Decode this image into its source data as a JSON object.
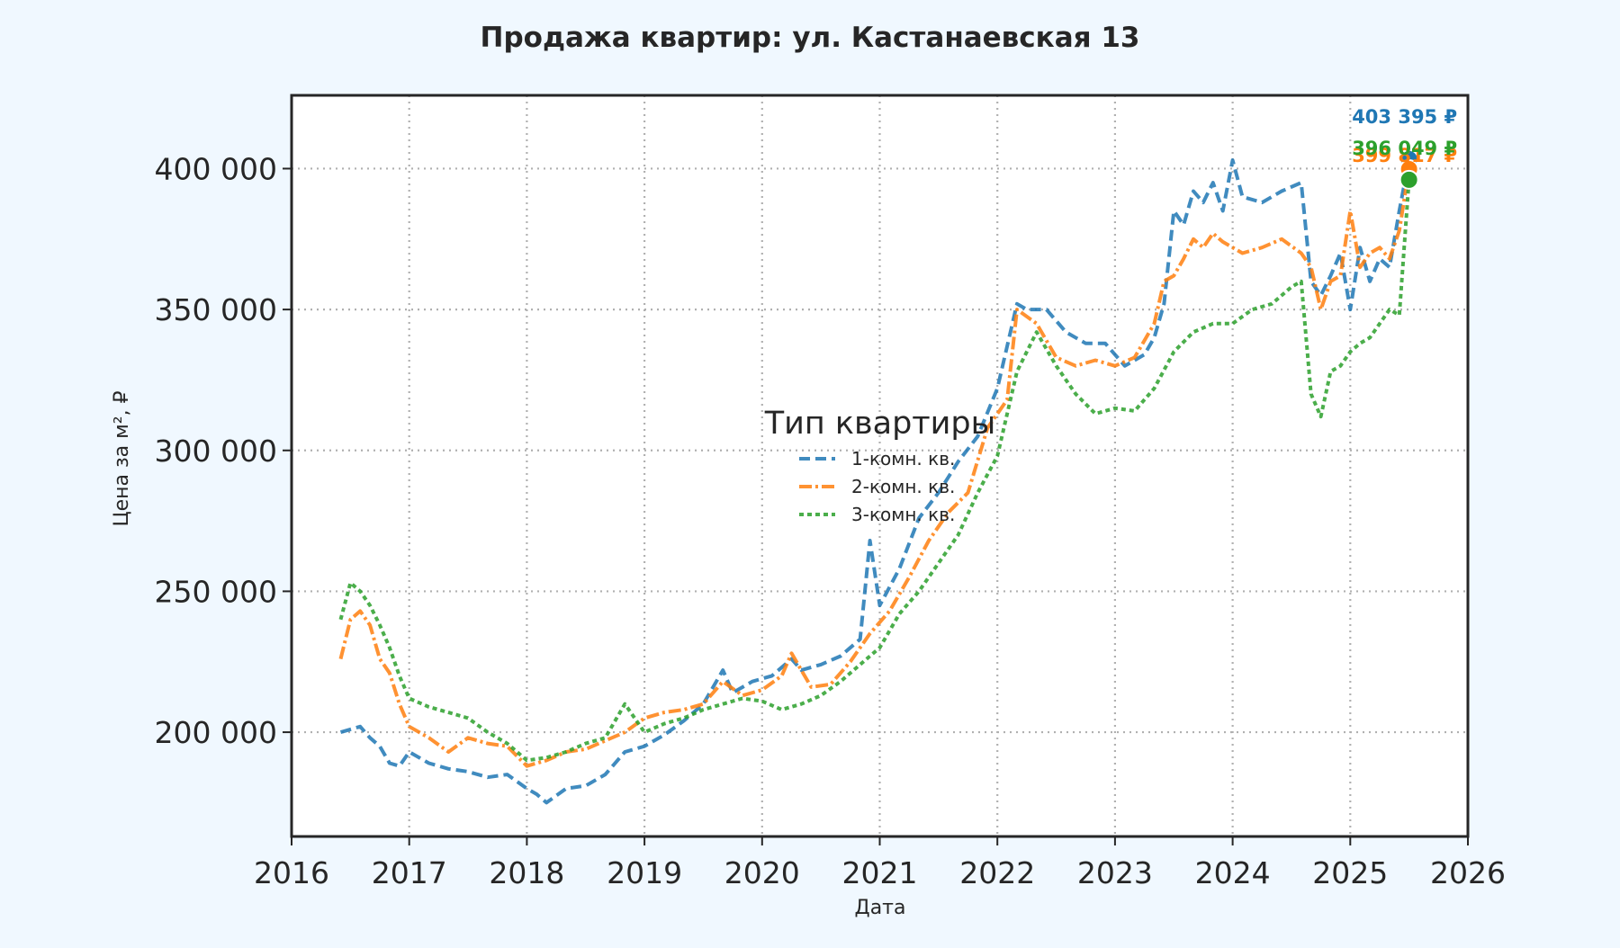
{
  "chart_data": {
    "type": "line",
    "title": "Продажа квартир: ул. Кастанаевская 13",
    "xlabel": "Дата",
    "ylabel": "Цена за м², ₽",
    "xlim": [
      "2016-01-01",
      "2026-01-01"
    ],
    "ylim": [
      163000,
      426000
    ],
    "x_ticks": [
      "2016",
      "2017",
      "2018",
      "2019",
      "2020",
      "2021",
      "2022",
      "2023",
      "2024",
      "2025",
      "2026"
    ],
    "y_ticks": [
      200000,
      250000,
      300000,
      350000,
      400000
    ],
    "y_tick_labels": [
      "200 000",
      "250 000",
      "300 000",
      "350 000",
      "400 000"
    ],
    "grid": true,
    "legend": {
      "title": "Тип квартиры",
      "placement": "center"
    },
    "series": [
      {
        "name": "1-комн. кв.",
        "color": "#1f77b4",
        "line_style": "dashed",
        "x": [
          "2016-06",
          "2016-07",
          "2016-08",
          "2016-09",
          "2016-10",
          "2016-11",
          "2016-12",
          "2017-01",
          "2017-03",
          "2017-05",
          "2017-07",
          "2017-09",
          "2017-11",
          "2018-01",
          "2018-02",
          "2018-03",
          "2018-05",
          "2018-07",
          "2018-09",
          "2018-11",
          "2019-01",
          "2019-03",
          "2019-05",
          "2019-07",
          "2019-09",
          "2019-10",
          "2019-12",
          "2020-02",
          "2020-04",
          "2020-05",
          "2020-07",
          "2020-09",
          "2020-11",
          "2020-12",
          "2021-01",
          "2021-03",
          "2021-05",
          "2021-07",
          "2021-09",
          "2021-11",
          "2022-01",
          "2022-03",
          "2022-04",
          "2022-06",
          "2022-08",
          "2022-10",
          "2022-12",
          "2023-02",
          "2023-04",
          "2023-05",
          "2023-06",
          "2023-07",
          "2023-08",
          "2023-09",
          "2023-10",
          "2023-11",
          "2023-12",
          "2024-01",
          "2024-02",
          "2024-04",
          "2024-06",
          "2024-08",
          "2024-09",
          "2024-10",
          "2024-11",
          "2024-12",
          "2025-01",
          "2025-02",
          "2025-03",
          "2025-04",
          "2025-05",
          "2025-06",
          "2025-07"
        ],
        "y": [
          200000,
          201000,
          202000,
          198000,
          195000,
          189000,
          188000,
          193000,
          189000,
          187000,
          186000,
          184000,
          185000,
          180000,
          178000,
          175000,
          180000,
          181000,
          185000,
          193000,
          195000,
          199000,
          204000,
          210000,
          222000,
          214000,
          218000,
          220000,
          226000,
          222000,
          224000,
          227000,
          233000,
          268000,
          245000,
          258000,
          276000,
          285000,
          296000,
          305000,
          322000,
          352000,
          350000,
          350000,
          342000,
          338000,
          338000,
          330000,
          334000,
          340000,
          352000,
          385000,
          380000,
          392000,
          388000,
          395000,
          385000,
          403000,
          390000,
          388000,
          392000,
          395000,
          360000,
          355000,
          362000,
          370000,
          350000,
          372000,
          360000,
          368000,
          365000,
          385000,
          403395
        ]
      },
      {
        "name": "2-комн. кв.",
        "color": "#ff7f0e",
        "line_style": "dashdot",
        "x": [
          "2016-06",
          "2016-07",
          "2016-08",
          "2016-09",
          "2016-10",
          "2016-11",
          "2016-12",
          "2017-01",
          "2017-03",
          "2017-05",
          "2017-07",
          "2017-09",
          "2017-11",
          "2018-01",
          "2018-03",
          "2018-05",
          "2018-07",
          "2018-09",
          "2018-11",
          "2019-01",
          "2019-03",
          "2019-05",
          "2019-07",
          "2019-09",
          "2019-11",
          "2020-01",
          "2020-03",
          "2020-04",
          "2020-06",
          "2020-08",
          "2020-10",
          "2020-12",
          "2021-02",
          "2021-04",
          "2021-06",
          "2021-08",
          "2021-10",
          "2021-12",
          "2022-02",
          "2022-03",
          "2022-05",
          "2022-07",
          "2022-09",
          "2022-11",
          "2023-01",
          "2023-03",
          "2023-05",
          "2023-06",
          "2023-07",
          "2023-08",
          "2023-09",
          "2023-10",
          "2023-11",
          "2023-12",
          "2024-02",
          "2024-04",
          "2024-06",
          "2024-08",
          "2024-09",
          "2024-10",
          "2024-11",
          "2024-12",
          "2025-01",
          "2025-02",
          "2025-03",
          "2025-04",
          "2025-05",
          "2025-06",
          "2025-07"
        ],
        "y": [
          226000,
          240000,
          243000,
          238000,
          226000,
          221000,
          210000,
          202000,
          198000,
          193000,
          198000,
          196000,
          195000,
          188000,
          190000,
          193000,
          194000,
          197000,
          200000,
          205000,
          207000,
          208000,
          210000,
          218000,
          213000,
          215000,
          220000,
          228000,
          216000,
          217000,
          225000,
          235000,
          243000,
          255000,
          268000,
          278000,
          285000,
          308000,
          318000,
          350000,
          345000,
          333000,
          330000,
          332000,
          330000,
          333000,
          345000,
          360000,
          362000,
          368000,
          375000,
          372000,
          377000,
          374000,
          370000,
          372000,
          375000,
          370000,
          365000,
          350000,
          360000,
          362000,
          385000,
          365000,
          370000,
          372000,
          368000,
          378000,
          399817
        ]
      },
      {
        "name": "3-комн. кв.",
        "color": "#2ca02c",
        "line_style": "dotted",
        "x": [
          "2016-06",
          "2016-07",
          "2016-08",
          "2016-09",
          "2016-10",
          "2016-11",
          "2016-12",
          "2017-01",
          "2017-03",
          "2017-05",
          "2017-07",
          "2017-09",
          "2017-11",
          "2018-01",
          "2018-03",
          "2018-05",
          "2018-07",
          "2018-09",
          "2018-11",
          "2019-01",
          "2019-03",
          "2019-05",
          "2019-07",
          "2019-09",
          "2019-11",
          "2020-01",
          "2020-03",
          "2020-05",
          "2020-07",
          "2020-09",
          "2020-11",
          "2021-01",
          "2021-03",
          "2021-05",
          "2021-07",
          "2021-09",
          "2021-11",
          "2022-01",
          "2022-03",
          "2022-05",
          "2022-07",
          "2022-09",
          "2022-11",
          "2023-01",
          "2023-03",
          "2023-05",
          "2023-07",
          "2023-09",
          "2023-11",
          "2024-01",
          "2024-03",
          "2024-05",
          "2024-07",
          "2024-08",
          "2024-09",
          "2024-10",
          "2024-11",
          "2024-12",
          "2025-01",
          "2025-02",
          "2025-03",
          "2025-04",
          "2025-05",
          "2025-06",
          "2025-07"
        ],
        "y": [
          240000,
          253000,
          250000,
          245000,
          238000,
          230000,
          220000,
          212000,
          209000,
          207000,
          205000,
          200000,
          196000,
          190000,
          191000,
          193000,
          196000,
          198000,
          210000,
          200000,
          203000,
          205000,
          208000,
          210000,
          212000,
          211000,
          208000,
          210000,
          213000,
          218000,
          224000,
          230000,
          242000,
          250000,
          260000,
          270000,
          285000,
          298000,
          328000,
          342000,
          330000,
          320000,
          313000,
          315000,
          314000,
          322000,
          335000,
          342000,
          345000,
          345000,
          350000,
          352000,
          358000,
          360000,
          320000,
          312000,
          328000,
          330000,
          335000,
          338000,
          340000,
          345000,
          350000,
          348000,
          396049
        ]
      }
    ],
    "end_labels": [
      "403 395 ₽",
      "399 817 ₽",
      "396 049 ₽"
    ]
  }
}
